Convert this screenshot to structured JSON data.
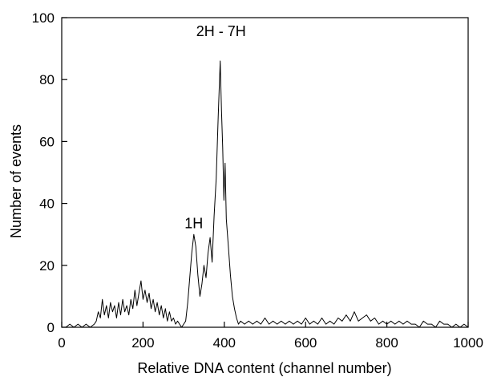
{
  "chart_data": {
    "type": "line",
    "title": "",
    "xlabel": "Relative DNA content (channel number)",
    "ylabel": "Number of events",
    "xlim": [
      0,
      1000
    ],
    "ylim": [
      0,
      100
    ],
    "xticks": [
      0,
      200,
      400,
      600,
      800,
      1000
    ],
    "yticks": [
      0,
      20,
      40,
      60,
      80,
      100
    ],
    "grid": false,
    "legend": "none",
    "line_color": "#000000",
    "annotations": [
      {
        "text": "1H",
        "x": 325,
        "y": 32
      },
      {
        "text": "2H - 7H",
        "x": 392,
        "y": 94
      }
    ],
    "series": [
      {
        "points": [
          [
            10,
            0
          ],
          [
            20,
            1
          ],
          [
            30,
            0
          ],
          [
            40,
            1
          ],
          [
            50,
            0
          ],
          [
            60,
            1
          ],
          [
            70,
            0
          ],
          [
            80,
            1
          ],
          [
            85,
            2
          ],
          [
            90,
            5
          ],
          [
            95,
            3
          ],
          [
            100,
            9
          ],
          [
            105,
            4
          ],
          [
            110,
            7
          ],
          [
            115,
            3
          ],
          [
            120,
            8
          ],
          [
            125,
            5
          ],
          [
            130,
            7
          ],
          [
            135,
            3
          ],
          [
            140,
            8
          ],
          [
            145,
            4
          ],
          [
            150,
            9
          ],
          [
            155,
            5
          ],
          [
            160,
            7
          ],
          [
            165,
            4
          ],
          [
            170,
            9
          ],
          [
            175,
            6
          ],
          [
            180,
            12
          ],
          [
            185,
            7
          ],
          [
            190,
            11
          ],
          [
            195,
            15
          ],
          [
            200,
            9
          ],
          [
            205,
            12
          ],
          [
            210,
            8
          ],
          [
            215,
            11
          ],
          [
            220,
            6
          ],
          [
            225,
            9
          ],
          [
            230,
            5
          ],
          [
            235,
            8
          ],
          [
            240,
            4
          ],
          [
            245,
            7
          ],
          [
            250,
            3
          ],
          [
            255,
            6
          ],
          [
            260,
            2
          ],
          [
            265,
            5
          ],
          [
            270,
            2
          ],
          [
            275,
            3
          ],
          [
            280,
            1
          ],
          [
            285,
            2
          ],
          [
            290,
            1
          ],
          [
            295,
            0
          ],
          [
            300,
            1
          ],
          [
            305,
            2
          ],
          [
            310,
            8
          ],
          [
            315,
            16
          ],
          [
            320,
            24
          ],
          [
            325,
            30
          ],
          [
            330,
            26
          ],
          [
            335,
            17
          ],
          [
            340,
            10
          ],
          [
            345,
            14
          ],
          [
            350,
            20
          ],
          [
            355,
            16
          ],
          [
            360,
            24
          ],
          [
            365,
            29
          ],
          [
            370,
            21
          ],
          [
            375,
            36
          ],
          [
            380,
            48
          ],
          [
            385,
            68
          ],
          [
            390,
            86
          ],
          [
            393,
            70
          ],
          [
            396,
            58
          ],
          [
            399,
            41
          ],
          [
            402,
            53
          ],
          [
            405,
            35
          ],
          [
            410,
            26
          ],
          [
            415,
            17
          ],
          [
            420,
            10
          ],
          [
            425,
            6
          ],
          [
            430,
            3
          ],
          [
            435,
            1
          ],
          [
            440,
            2
          ],
          [
            450,
            1
          ],
          [
            460,
            2
          ],
          [
            470,
            1
          ],
          [
            480,
            2
          ],
          [
            490,
            1
          ],
          [
            500,
            3
          ],
          [
            510,
            1
          ],
          [
            520,
            2
          ],
          [
            530,
            1
          ],
          [
            540,
            2
          ],
          [
            550,
            1
          ],
          [
            560,
            2
          ],
          [
            570,
            1
          ],
          [
            580,
            2
          ],
          [
            590,
            1
          ],
          [
            600,
            3
          ],
          [
            610,
            1
          ],
          [
            620,
            2
          ],
          [
            630,
            1
          ],
          [
            640,
            3
          ],
          [
            650,
            1
          ],
          [
            660,
            2
          ],
          [
            670,
            1
          ],
          [
            680,
            3
          ],
          [
            690,
            2
          ],
          [
            700,
            4
          ],
          [
            710,
            2
          ],
          [
            720,
            5
          ],
          [
            730,
            2
          ],
          [
            740,
            3
          ],
          [
            750,
            4
          ],
          [
            760,
            2
          ],
          [
            770,
            3
          ],
          [
            780,
            1
          ],
          [
            790,
            2
          ],
          [
            800,
            1
          ],
          [
            810,
            2
          ],
          [
            820,
            1
          ],
          [
            830,
            2
          ],
          [
            840,
            1
          ],
          [
            850,
            2
          ],
          [
            860,
            1
          ],
          [
            870,
            1
          ],
          [
            880,
            0
          ],
          [
            890,
            2
          ],
          [
            900,
            1
          ],
          [
            910,
            1
          ],
          [
            920,
            0
          ],
          [
            930,
            2
          ],
          [
            940,
            1
          ],
          [
            950,
            1
          ],
          [
            960,
            0
          ],
          [
            970,
            1
          ],
          [
            980,
            0
          ],
          [
            990,
            1
          ],
          [
            1000,
            0
          ]
        ]
      }
    ]
  }
}
